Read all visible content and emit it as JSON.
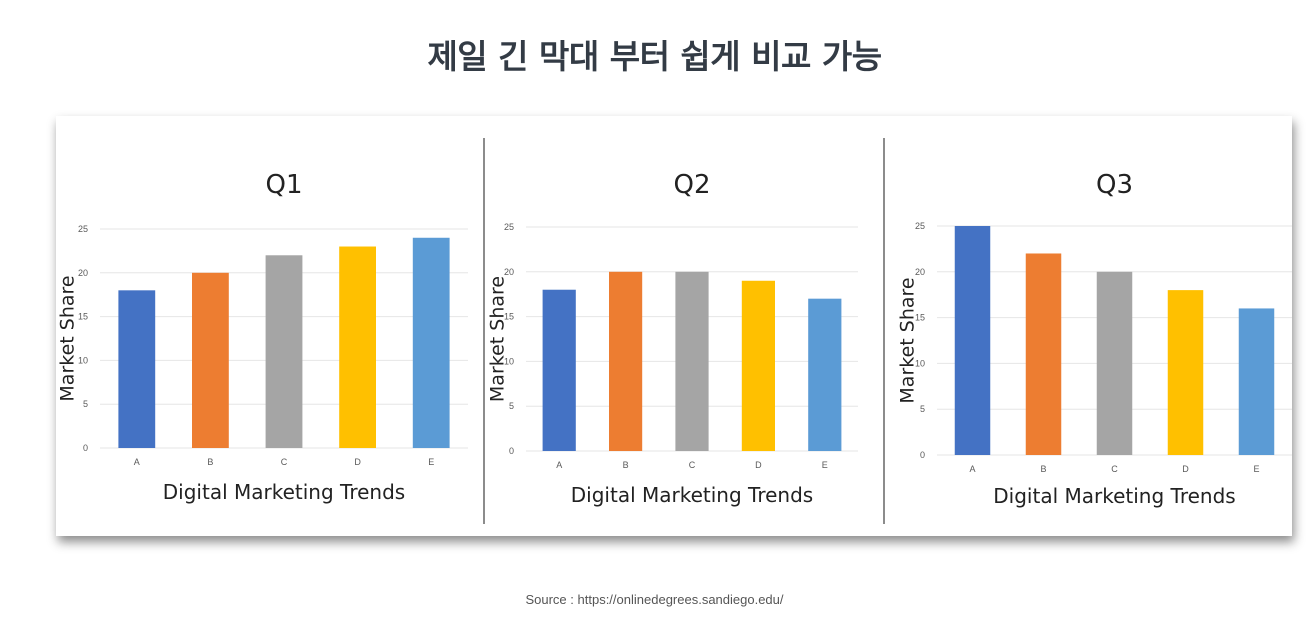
{
  "page": {
    "title": "제일 긴 막대 부터 쉽게 비교 가능",
    "source_prefix": "Source :",
    "source_url": "https://onlinedegrees.sandiego.edu/"
  },
  "colors": {
    "A": "#4472c4",
    "B": "#ed7d31",
    "C": "#a5a5a5",
    "D": "#ffc000",
    "E": "#5b9bd5",
    "gridline": "#e6e6e6",
    "divider": "#8c8c8c",
    "tick_text": "#595959"
  },
  "chart_data": [
    {
      "type": "bar",
      "title": "Q1",
      "xlabel": "Digital Marketing Trends",
      "ylabel": "Market Share",
      "categories": [
        "A",
        "B",
        "C",
        "D",
        "E"
      ],
      "values": [
        18,
        20,
        22,
        23,
        24
      ],
      "ylim": [
        0,
        25
      ],
      "yticks": [
        "0",
        "5",
        "10",
        "15",
        "20",
        "25"
      ],
      "grid": true,
      "legend": "none"
    },
    {
      "type": "bar",
      "title": "Q2",
      "xlabel": "Digital Marketing Trends",
      "ylabel": "Market Share",
      "categories": [
        "A",
        "B",
        "C",
        "D",
        "E"
      ],
      "values": [
        18,
        20,
        20,
        19,
        17
      ],
      "ylim": [
        0,
        25
      ],
      "yticks": [
        "0",
        "5",
        "10",
        "15",
        "20",
        "25"
      ],
      "grid": true,
      "legend": "none"
    },
    {
      "type": "bar",
      "title": "Q3",
      "xlabel": "Digital Marketing Trends",
      "ylabel": "Market Share",
      "categories": [
        "A",
        "B",
        "C",
        "D",
        "E"
      ],
      "values": [
        25,
        22,
        20,
        18,
        16
      ],
      "ylim": [
        0,
        25
      ],
      "yticks": [
        "0",
        "5",
        "10",
        "15",
        "20",
        "25"
      ],
      "grid": true,
      "legend": "none"
    }
  ]
}
